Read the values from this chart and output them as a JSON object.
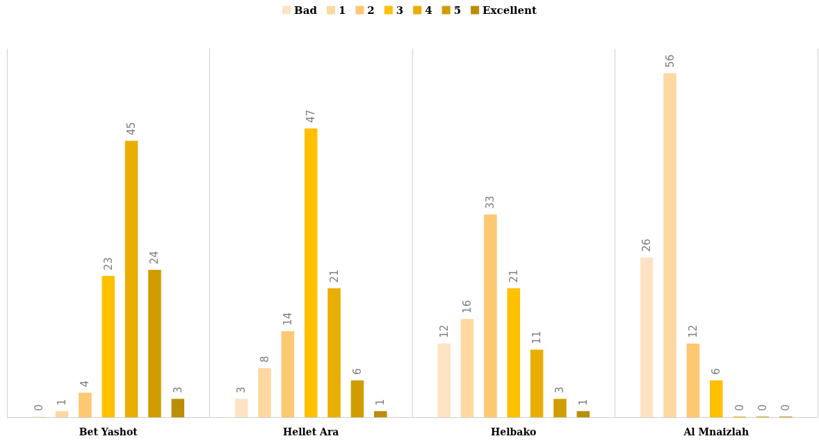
{
  "chart_data": {
    "type": "bar",
    "categories": [
      "Bet Yashot",
      "Hellet Ara",
      "Helbako",
      "Al Mnaizlah"
    ],
    "series": [
      {
        "name": "Bad",
        "color": "#fde3c3",
        "values": [
          0,
          3,
          12,
          26
        ]
      },
      {
        "name": "1",
        "color": "#fdd8a0",
        "values": [
          1,
          8,
          16,
          56
        ]
      },
      {
        "name": "2",
        "color": "#fcc872",
        "values": [
          4,
          14,
          33,
          12
        ]
      },
      {
        "name": "3",
        "color": "#ffc000",
        "values": [
          23,
          47,
          21,
          6
        ]
      },
      {
        "name": "4",
        "color": "#e8ae00",
        "values": [
          45,
          21,
          11,
          0
        ]
      },
      {
        "name": "5",
        "color": "#d09d00",
        "values": [
          24,
          6,
          3,
          0
        ]
      },
      {
        "name": "Excellent",
        "color": "#bb8e07",
        "values": [
          3,
          1,
          1,
          0
        ]
      }
    ],
    "data_labels": true,
    "grid": "x",
    "legend": "top"
  }
}
